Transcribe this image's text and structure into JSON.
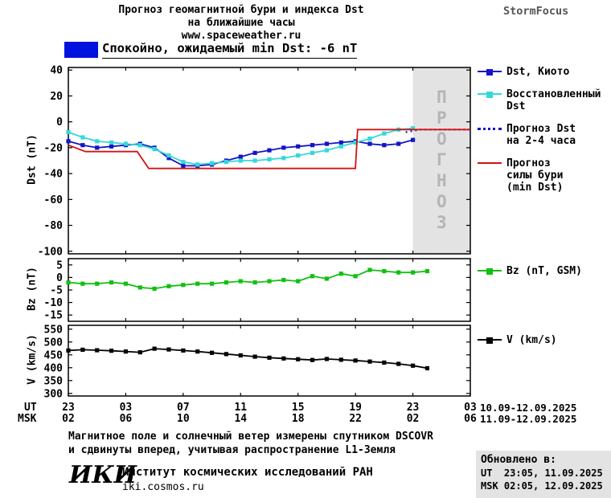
{
  "header": {
    "title_line1": "Прогноз геомагнитной бури и индекса Dst",
    "title_line2": "на ближайшие часы",
    "site": "www.spaceweather.ru",
    "brand": "StormFocus"
  },
  "status": {
    "text": "Спокойно, ожидаемый min Dst: -6 nT",
    "box_color": "#0012dd"
  },
  "forecast_label": "ПРОГНОЗ",
  "chart_data": [
    {
      "type": "line",
      "panel": "dst",
      "ylabel": "Dst (nT)",
      "ylim": [
        -102,
        42
      ],
      "yticks": [
        40,
        20,
        0,
        -20,
        -40,
        -60,
        -80,
        -100
      ],
      "xlim": [
        0,
        28
      ],
      "xticks_hours": [
        0,
        4,
        8,
        12,
        16,
        20,
        24,
        28
      ],
      "forecast_region": [
        24,
        28
      ],
      "grid": false,
      "series": [
        {
          "id": "dst_kyoto",
          "name": "Dst, Киото",
          "color": "#1414c8",
          "marker": "square",
          "style": "solid",
          "x": [
            0,
            1,
            2,
            3,
            4,
            5,
            6,
            7,
            8,
            9,
            10,
            11,
            12,
            13,
            14,
            15,
            16,
            17,
            18,
            19,
            20,
            21,
            22,
            23,
            24
          ],
          "y": [
            -15,
            -18,
            -20,
            -19,
            -18,
            -17,
            -20,
            -28,
            -34,
            -34,
            -33,
            -30,
            -27,
            -24,
            -22,
            -20,
            -19,
            -18,
            -17,
            -16,
            -15,
            -17,
            -18,
            -17,
            -14
          ]
        },
        {
          "id": "dst_restored",
          "name": "Восстановленный Dst",
          "color": "#35d8d8",
          "marker": "square",
          "style": "solid",
          "x": [
            0,
            1,
            2,
            3,
            4,
            5,
            6,
            7,
            8,
            9,
            10,
            11,
            12,
            13,
            14,
            15,
            16,
            17,
            18,
            19,
            20,
            21,
            22,
            23,
            24
          ],
          "y": [
            -8,
            -12,
            -15,
            -16,
            -17,
            -18,
            -21,
            -26,
            -31,
            -33,
            -32,
            -31,
            -30,
            -30,
            -29,
            -28,
            -26,
            -24,
            -22,
            -19,
            -16,
            -13,
            -9,
            -6,
            -5
          ]
        },
        {
          "id": "dst_forecast",
          "name": "Прогноз Dst на 2-4 часа",
          "color": "#1414c8",
          "style": "dotted",
          "x": [
            23.5,
            24.5,
            26,
            28
          ],
          "y": [
            -8,
            -6,
            -6,
            -6
          ]
        },
        {
          "id": "storm_forecast",
          "name": "Прогноз силы бури (min Dst)",
          "color": "#d01414",
          "style": "solid",
          "x": [
            0,
            1.2,
            4.8,
            5.6,
            20,
            20.15,
            28
          ],
          "y": [
            -18,
            -23,
            -23,
            -36,
            -36,
            -6,
            -6
          ]
        }
      ]
    },
    {
      "type": "line",
      "panel": "bz",
      "ylabel": "Bz (nT)",
      "ylim": [
        -17.5,
        7.5
      ],
      "yticks": [
        5,
        0,
        -5,
        -10,
        -15
      ],
      "xlim": [
        0,
        28
      ],
      "xticks_hours": [
        0,
        4,
        8,
        12,
        16,
        20,
        24,
        28
      ],
      "grid": false,
      "series": [
        {
          "id": "bz",
          "name": "Bz (nT, GSM)",
          "color": "#12c012",
          "marker": "square",
          "style": "solid",
          "x": [
            0,
            1,
            2,
            3,
            4,
            5,
            6,
            7,
            8,
            9,
            10,
            11,
            12,
            13,
            14,
            15,
            16,
            17,
            18,
            19,
            20,
            21,
            22,
            23,
            24,
            25
          ],
          "y": [
            -2,
            -2.5,
            -2.5,
            -2,
            -2.5,
            -4,
            -4.5,
            -3.5,
            -3,
            -2.5,
            -2.5,
            -2,
            -1.5,
            -2,
            -1.5,
            -1,
            -1.5,
            0.5,
            -0.5,
            1.5,
            0.5,
            3,
            2.5,
            2,
            2,
            2.5
          ]
        }
      ]
    },
    {
      "type": "line",
      "panel": "v",
      "ylabel": "V (km/s)",
      "ylim": [
        290,
        565
      ],
      "yticks": [
        550,
        500,
        450,
        400,
        350,
        300
      ],
      "xlim": [
        0,
        28
      ],
      "xticks_hours": [
        0,
        4,
        8,
        12,
        16,
        20,
        24,
        28
      ],
      "grid": false,
      "series": [
        {
          "id": "v",
          "name": "V (km/s)",
          "color": "#000000",
          "marker": "square",
          "style": "solid",
          "x": [
            0,
            1,
            2,
            3,
            4,
            5,
            6,
            7,
            8,
            9,
            10,
            11,
            12,
            13,
            14,
            15,
            16,
            17,
            18,
            19,
            20,
            21,
            22,
            23,
            24,
            25
          ],
          "y": [
            467,
            470,
            468,
            466,
            463,
            460,
            474,
            471,
            467,
            463,
            458,
            453,
            448,
            443,
            439,
            436,
            433,
            430,
            434,
            431,
            428,
            424,
            420,
            415,
            408,
            398
          ]
        }
      ]
    }
  ],
  "xaxis": {
    "ut_label": "UT",
    "msk_label": "MSK",
    "tick_hours": [
      0,
      4,
      8,
      12,
      16,
      20,
      24,
      28
    ],
    "ut_ticks": [
      "23",
      "03",
      "07",
      "11",
      "15",
      "19",
      "23",
      "03"
    ],
    "msk_ticks": [
      "02",
      "06",
      "10",
      "14",
      "18",
      "22",
      "02",
      "06"
    ],
    "ut_date_range": "10.09-12.09.2025",
    "msk_date_range": "11.09-12.09.2025"
  },
  "legend": {
    "dst_items": [
      {
        "label": "Dst, Киото"
      },
      {
        "label": "Восстановленный\nDst"
      },
      {
        "label": "Прогноз Dst\nна 2-4 часа"
      },
      {
        "label": "Прогноз\nсилы бури\n(min Dst)"
      }
    ],
    "bz_label": "Bz (nT, GSM)",
    "v_label": "V (km/s)"
  },
  "footer": {
    "note_line1": "Магнитное поле и солнечный ветер измерены спутником DSCOVR",
    "note_line2": "и сдвинуты вперед, учитывая распространение L1-Земля",
    "logo": "ИКИ",
    "institute": "Институт космических исследований РАН",
    "institute_site": "iki.cosmos.ru",
    "updated_label": "Обновлено в:",
    "updated_ut": "UT  23:05, 11.09.2025",
    "updated_msk": "MSK 02:05, 12.09.2025"
  }
}
